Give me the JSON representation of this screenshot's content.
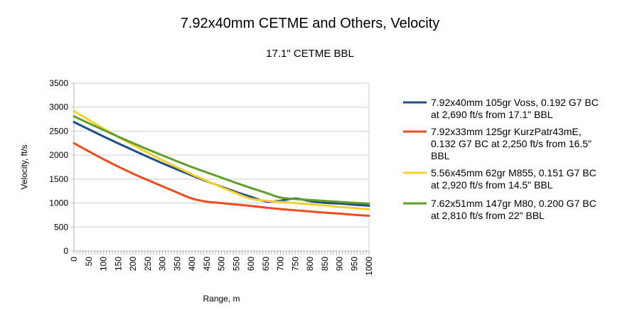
{
  "chart_data": {
    "type": "line",
    "title": "7.92x40mm CETME and Others, Velocity",
    "subtitle": "17.1\" CETME BBL",
    "xlabel": "Range, m",
    "ylabel": "Velocity, ft/s",
    "xlim": [
      0,
      1000
    ],
    "ylim": [
      0,
      3500
    ],
    "x_ticks": [
      "0",
      "50",
      "100",
      "150",
      "200",
      "250",
      "300",
      "350",
      "400",
      "450",
      "500",
      "550",
      "600",
      "650",
      "700",
      "750",
      "800",
      "850",
      "900",
      "950",
      "1000"
    ],
    "y_ticks": [
      "0",
      "500",
      "1000",
      "1500",
      "2000",
      "2500",
      "3000",
      "3500"
    ],
    "grid": true,
    "legend_position": "right",
    "x": [
      0,
      50,
      100,
      150,
      200,
      250,
      300,
      350,
      400,
      450,
      500,
      550,
      600,
      650,
      700,
      750,
      800,
      850,
      900,
      950,
      1000
    ],
    "series": [
      {
        "name": "7.92x40mm 105gr Voss, 0.192 G7 BC at 2,690 ft/s from 17.1\" BBL",
        "legend_lines": [
          "7.92x40mm 105gr Voss, 0.192 G7 BC",
          "at 2,690 ft/s from 17.1\" BBL"
        ],
        "color": "#1f4e8c",
        "values": [
          2690,
          2540,
          2390,
          2245,
          2105,
          1965,
          1830,
          1700,
          1575,
          1455,
          1340,
          1230,
          1130,
          1035,
          1050,
          1095,
          1040,
          1005,
          990,
          965,
          945
        ]
      },
      {
        "name": "7.92x33mm 125gr KurzPatr43mE, 0.132 G7 BC at 2,250 ft/s from 16.5\" BBL",
        "legend_lines": [
          "7.92x33mm 125gr KurzPatr43mE,",
          "0.132 G7 BC at 2,250 ft/s from 16.5\"",
          "BBL"
        ],
        "color": "#ef4b1c",
        "values": [
          2250,
          2080,
          1915,
          1760,
          1615,
          1480,
          1350,
          1220,
          1095,
          1030,
          1000,
          970,
          940,
          905,
          875,
          850,
          825,
          800,
          780,
          755,
          735
        ]
      },
      {
        "name": "5.56x45mm 62gr M855, 0.151 G7 BC at 2,920 ft/s from 14.5\" BBL",
        "legend_lines": [
          "5.56x45mm 62gr M855, 0.151 G7 BC",
          "at 2,920 ft/s from 14.5\" BBL"
        ],
        "color": "#f7d12a",
        "values": [
          2920,
          2735,
          2555,
          2380,
          2215,
          2050,
          1895,
          1745,
          1600,
          1465,
          1330,
          1205,
          1090,
          1050,
          1025,
          1000,
          975,
          950,
          920,
          895,
          870
        ]
      },
      {
        "name": "7.62x51mm 147gr M80, 0.200 G7 BC at 2,810 ft/s from 22\" BBL",
        "legend_lines": [
          "7.62x51mm 147gr M80, 0.200 G7 BC",
          "at 2,810 ft/s from 22\" BBL"
        ],
        "color": "#5f9e2b",
        "values": [
          2810,
          2665,
          2525,
          2385,
          2250,
          2120,
          1995,
          1870,
          1750,
          1640,
          1530,
          1420,
          1315,
          1215,
          1115,
          1085,
          1065,
          1045,
          1025,
          1005,
          990
        ]
      }
    ]
  }
}
